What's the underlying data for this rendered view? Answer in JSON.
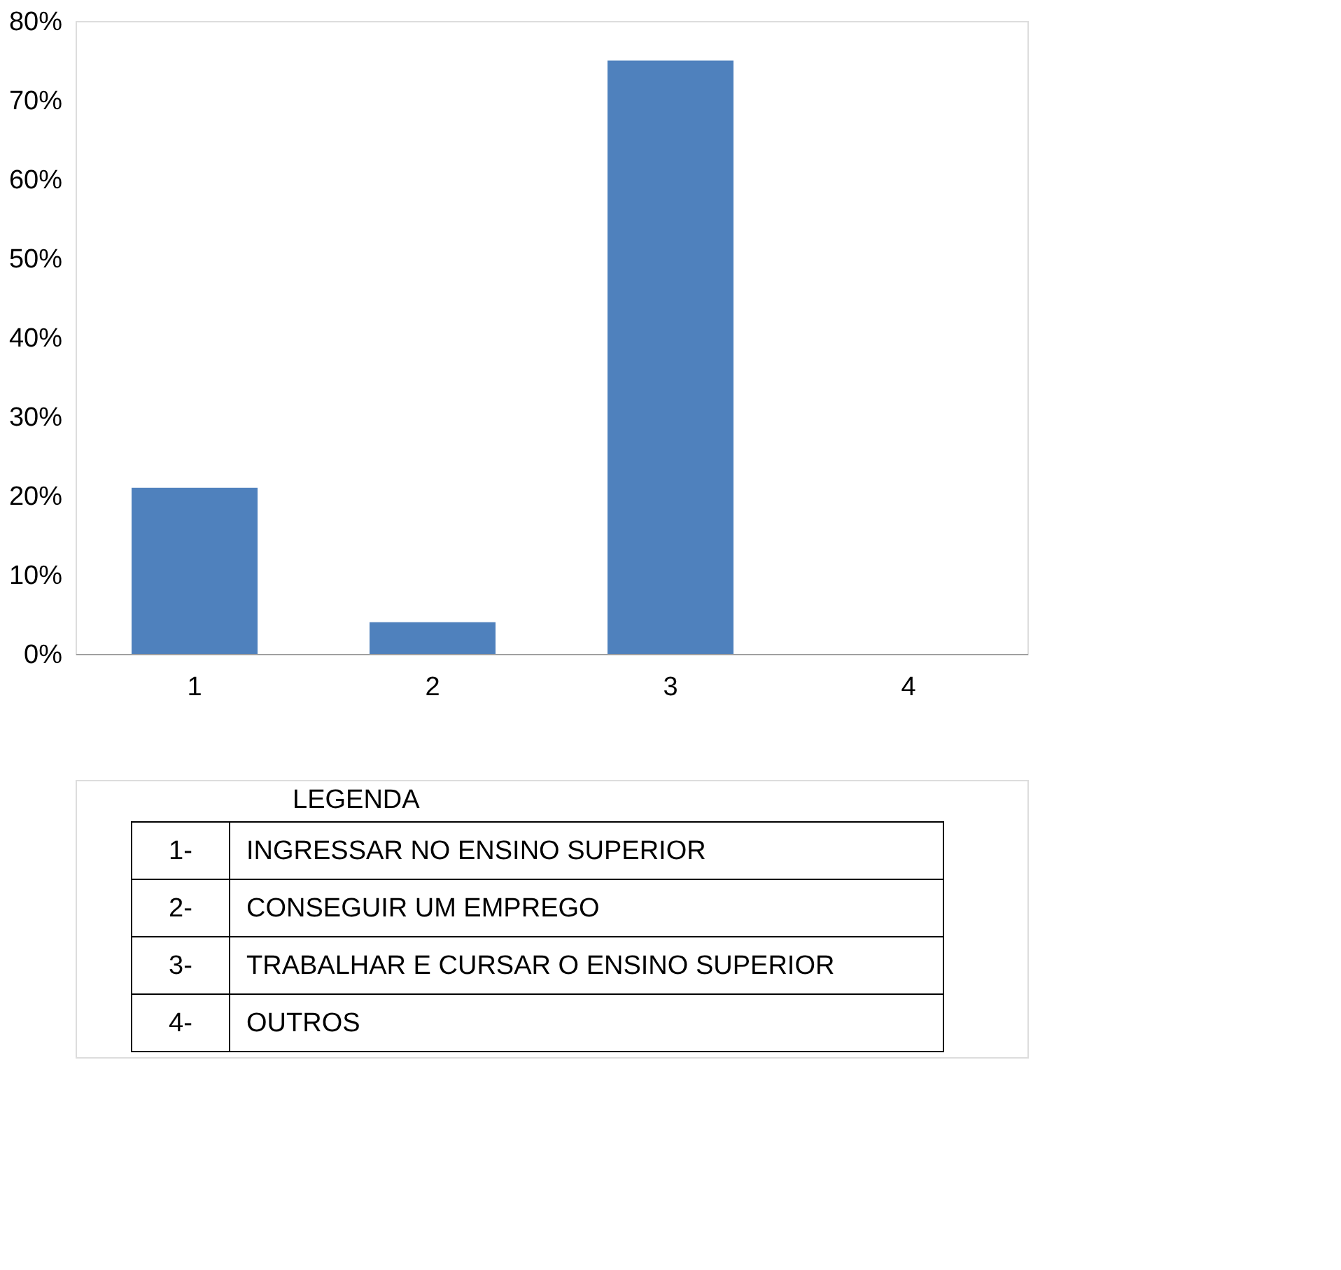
{
  "chart_data": {
    "type": "bar",
    "categories": [
      "1",
      "2",
      "3",
      "4"
    ],
    "values": [
      21,
      4,
      75,
      0
    ],
    "color": "#4f81bd",
    "ylim": [
      0,
      80
    ],
    "yticks": [
      {
        "value": 0,
        "label": "0%"
      },
      {
        "value": 10,
        "label": "10%"
      },
      {
        "value": 20,
        "label": "20%"
      },
      {
        "value": 30,
        "label": "30%"
      },
      {
        "value": 40,
        "label": "40%"
      },
      {
        "value": 50,
        "label": "50%"
      },
      {
        "value": 60,
        "label": "60%"
      },
      {
        "value": 70,
        "label": "70%"
      },
      {
        "value": 80,
        "label": "80%"
      }
    ],
    "grid": false,
    "annotations": [
      "LEGENDA",
      "1-",
      "INGRESSAR NO ENSINO SUPERIOR",
      "2-",
      "CONSEGUIR UM EMPREGO",
      "3-",
      "TRABALHAR E CURSAR O ENSINO SUPERIOR",
      "4-",
      "OUTROS"
    ]
  }
}
